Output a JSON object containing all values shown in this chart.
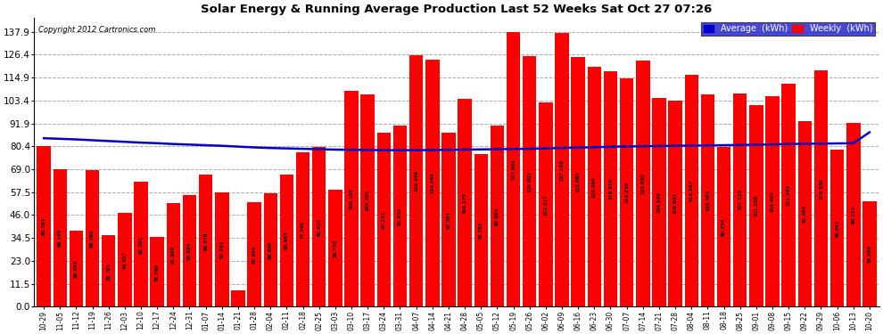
{
  "title": "Solar Energy & Running Average Production Last 52 Weeks Sat Oct 27 07:26",
  "copyright": "Copyright 2012 Cartronics.com",
  "bar_color": "#ff0000",
  "avg_line_color": "#0000cc",
  "background_color": "#ffffff",
  "grid_color": "#aaaaaa",
  "categories": [
    "10-29",
    "11-05",
    "11-12",
    "11-19",
    "11-26",
    "12-03",
    "12-10",
    "12-17",
    "12-24",
    "12-31",
    "01-07",
    "01-14",
    "01-21",
    "01-28",
    "02-04",
    "02-11",
    "02-18",
    "02-25",
    "03-03",
    "03-10",
    "03-17",
    "03-24",
    "03-31",
    "04-07",
    "04-14",
    "04-21",
    "04-28",
    "05-05",
    "05-12",
    "05-19",
    "05-26",
    "06-02",
    "06-09",
    "06-16",
    "06-23",
    "06-30",
    "07-07",
    "07-14",
    "07-21",
    "07-28",
    "08-04",
    "08-11",
    "08-18",
    "08-25",
    "09-01",
    "09-08",
    "09-15",
    "09-22",
    "09-29",
    "10-06",
    "10-13",
    "10-20"
  ],
  "weekly_values": [
    80.781,
    69.145,
    38.285,
    68.36,
    35.761,
    46.937,
    62.581,
    34.796,
    51.958,
    55.826,
    66.078,
    57.282,
    8.022,
    52.64,
    56.802,
    66.487,
    77.349,
    80.022,
    58.776,
    108.105,
    106.282,
    87.221,
    90.935,
    126.046,
    124.043,
    87.351,
    104.175,
    76.355,
    90.892,
    137.902,
    125.603,
    102.517,
    137.268,
    125.095,
    120.094,
    118.019,
    114.336,
    123.65,
    104.545,
    103.503,
    116.267,
    106.465,
    80.234,
    107.125,
    101.209,
    105.493,
    111.984,
    93.264,
    118.53,
    78.647,
    92.212,
    53.056
  ],
  "avg_values": [
    84.5,
    84.2,
    83.9,
    83.5,
    83.1,
    82.7,
    82.3,
    82.0,
    81.6,
    81.3,
    81.0,
    80.7,
    80.3,
    79.9,
    79.6,
    79.4,
    79.2,
    79.0,
    78.8,
    78.7,
    78.6,
    78.5,
    78.5,
    78.5,
    78.6,
    78.7,
    78.8,
    78.9,
    79.0,
    79.1,
    79.2,
    79.4,
    79.6,
    79.8,
    80.0,
    80.2,
    80.4,
    80.5,
    80.6,
    80.7,
    80.8,
    80.9,
    81.0,
    81.1,
    81.3,
    81.4,
    81.6,
    81.7,
    81.8,
    81.9,
    82.0,
    87.5
  ],
  "yticks": [
    0.0,
    11.5,
    23.0,
    34.5,
    46.0,
    57.5,
    69.0,
    80.4,
    91.9,
    103.4,
    114.9,
    126.4,
    137.9
  ],
  "ylim_max": 145.0
}
